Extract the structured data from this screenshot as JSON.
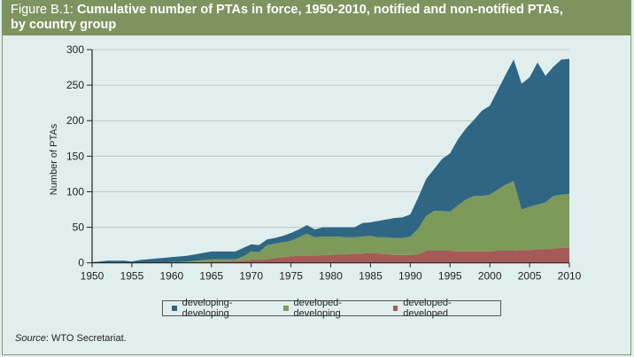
{
  "figure": {
    "label": "Figure B.1:",
    "title": "Cumulative number of PTAs in force, 1950-2010, notified and non-notified PTAs, by country group",
    "title_line1": "Cumulative number of PTAs in force, 1950-2010, notified and non-notified PTAs,",
    "title_line2": "by country group",
    "source_label": "Source",
    "source_text": ": WTO Secretariat."
  },
  "colors": {
    "developing-developing": "#2f6683",
    "developed-developing": "#7d9a5b",
    "developed-developed": "#a65a57",
    "title_bar": "#7e9460"
  },
  "chart_data": {
    "type": "area",
    "stacked": true,
    "title": "Cumulative number of PTAs in force, 1950-2010, notified and non-notified PTAs, by country group",
    "xlabel": "",
    "ylabel": "Number of PTAs",
    "xlim": [
      1950,
      2010
    ],
    "ylim": [
      0,
      300
    ],
    "xticks": [
      "1950",
      "1955",
      "1960",
      "1965",
      "1970",
      "1975",
      "1980",
      "1985",
      "1990",
      "1995",
      "2000",
      "2005",
      "2010"
    ],
    "yticks": [
      "0",
      "50",
      "100",
      "150",
      "200",
      "250",
      "300"
    ],
    "grid": "horizontal",
    "legend_position": "bottom",
    "x": [
      1950,
      1951,
      1952,
      1953,
      1954,
      1955,
      1956,
      1957,
      1958,
      1959,
      1960,
      1961,
      1962,
      1963,
      1964,
      1965,
      1966,
      1967,
      1968,
      1969,
      1970,
      1971,
      1972,
      1973,
      1974,
      1975,
      1976,
      1977,
      1978,
      1979,
      1980,
      1981,
      1982,
      1983,
      1984,
      1985,
      1986,
      1987,
      1988,
      1989,
      1990,
      1991,
      1992,
      1993,
      1994,
      1995,
      1996,
      1997,
      1998,
      1999,
      2000,
      2001,
      2002,
      2003,
      2004,
      2005,
      2006,
      2007,
      2008,
      2009,
      2010
    ],
    "series": [
      {
        "name": "developed-developed",
        "values": [
          0,
          0,
          0,
          0,
          0,
          0,
          0,
          0,
          0,
          0,
          0,
          0,
          0,
          1,
          1,
          2,
          2,
          2,
          2,
          3,
          4,
          4,
          5,
          7,
          8,
          9,
          10,
          10,
          10,
          11,
          11,
          12,
          12,
          13,
          13,
          14,
          13,
          12,
          11,
          11,
          11,
          12,
          17,
          17,
          17,
          17,
          16,
          16,
          16,
          16,
          16,
          17,
          17,
          17,
          18,
          18,
          19,
          19,
          20,
          21,
          21
        ]
      },
      {
        "name": "developed-developing",
        "values": [
          0,
          0,
          0,
          0,
          0,
          0,
          0,
          0,
          0,
          0,
          1,
          1,
          2,
          2,
          3,
          3,
          3,
          3,
          3,
          6,
          12,
          11,
          20,
          20,
          21,
          22,
          26,
          31,
          26,
          26,
          26,
          25,
          24,
          23,
          24,
          24,
          23,
          24,
          24,
          24,
          26,
          36,
          49,
          56,
          56,
          55,
          65,
          73,
          78,
          78,
          80,
          86,
          93,
          98,
          57,
          61,
          63,
          66,
          74,
          75,
          76
        ]
      },
      {
        "name": "developing-developing",
        "values": [
          1,
          2,
          3,
          3,
          3,
          2,
          4,
          5,
          6,
          7,
          7,
          8,
          8,
          9,
          10,
          11,
          11,
          11,
          11,
          12,
          10,
          10,
          8,
          8,
          9,
          11,
          11,
          12,
          11,
          13,
          13,
          13,
          14,
          14,
          19,
          19,
          23,
          25,
          28,
          29,
          31,
          44,
          52,
          59,
          73,
          82,
          93,
          100,
          107,
          120,
          125,
          140,
          155,
          171,
          177,
          182,
          200,
          178,
          182,
          190,
          190
        ]
      }
    ],
    "legend": [
      "developing-developing",
      "developed-developing",
      "developed-developed"
    ]
  }
}
